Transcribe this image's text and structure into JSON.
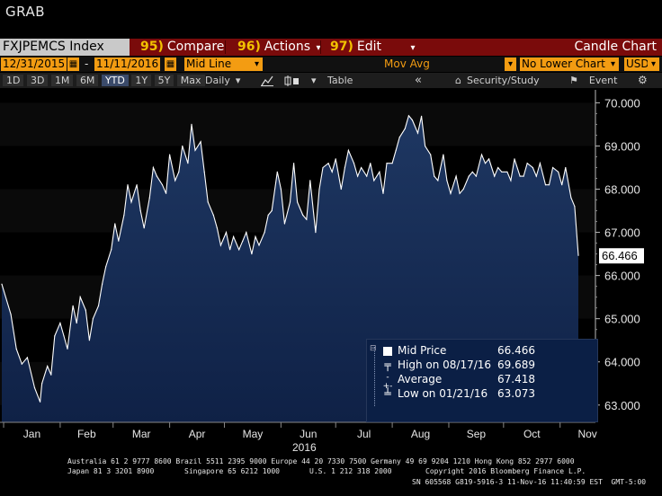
{
  "app": {
    "title": "GRAB"
  },
  "toolbar": {
    "ticker": "FXJPEMCS Index",
    "compare_num": "95)",
    "compare_label": "Compare",
    "actions_num": "96)",
    "actions_label": "Actions",
    "actions_arrow": "▾",
    "edit_num": "97)",
    "edit_label": "Edit",
    "edit_arrow": "▾",
    "chart_type": "Candle Chart"
  },
  "settings": {
    "start_date": "12/31/2015",
    "date_sep": "-",
    "end_date": "11/11/2016",
    "line_type": "Mid Line",
    "mov_avg_label": "Mov Avg",
    "lower_chart": "No Lower Chart",
    "currency": "USD"
  },
  "ranges": [
    "1D",
    "3D",
    "1M",
    "6M",
    "YTD",
    "1Y",
    "5Y",
    "Max"
  ],
  "selected_range": "YTD",
  "controls": {
    "frequency": "Daily",
    "table_label": "Table",
    "security_study_label": "Security/Study",
    "event_label": "Event"
  },
  "chart_data": {
    "type": "area",
    "series": [
      {
        "name": "Mid Price"
      }
    ],
    "year_label": "2016",
    "x_month_labels": [
      "Jan",
      "Feb",
      "Mar",
      "Apr",
      "May",
      "Jun",
      "Jul",
      "Aug",
      "Sep",
      "Oct",
      "Nov"
    ],
    "y_tick_labels": [
      "70.000",
      "69.000",
      "68.000",
      "67.000",
      "66.000",
      "65.000",
      "64.000",
      "63.000"
    ],
    "ylim": [
      62.6,
      70.3
    ],
    "last_value_label": "66.466",
    "x_dates": [
      "2015-12-31",
      "2016-01-05",
      "2016-01-08",
      "2016-01-11",
      "2016-01-14",
      "2016-01-18",
      "2016-01-21",
      "2016-01-22",
      "2016-01-25",
      "2016-01-27",
      "2016-01-29",
      "2016-02-01",
      "2016-02-03",
      "2016-02-05",
      "2016-02-08",
      "2016-02-10",
      "2016-02-12",
      "2016-02-15",
      "2016-02-17",
      "2016-02-19",
      "2016-02-22",
      "2016-02-24",
      "2016-02-26",
      "2016-02-29",
      "2016-03-02",
      "2016-03-04",
      "2016-03-07",
      "2016-03-09",
      "2016-03-11",
      "2016-03-14",
      "2016-03-16",
      "2016-03-18",
      "2016-03-21",
      "2016-03-23",
      "2016-03-25",
      "2016-03-28",
      "2016-03-30",
      "2016-04-01",
      "2016-04-04",
      "2016-04-06",
      "2016-04-08",
      "2016-04-11",
      "2016-04-13",
      "2016-04-15",
      "2016-04-18",
      "2016-04-20",
      "2016-04-22",
      "2016-04-25",
      "2016-04-27",
      "2016-04-29",
      "2016-05-02",
      "2016-05-04",
      "2016-05-06",
      "2016-05-09",
      "2016-05-11",
      "2016-05-13",
      "2016-05-16",
      "2016-05-18",
      "2016-05-20",
      "2016-05-23",
      "2016-05-25",
      "2016-05-27",
      "2016-05-30",
      "2016-06-01",
      "2016-06-03",
      "2016-06-06",
      "2016-06-08",
      "2016-06-10",
      "2016-06-13",
      "2016-06-15",
      "2016-06-17",
      "2016-06-20",
      "2016-06-22",
      "2016-06-24",
      "2016-06-27",
      "2016-06-29",
      "2016-07-01",
      "2016-07-04",
      "2016-07-06",
      "2016-07-08",
      "2016-07-11",
      "2016-07-13",
      "2016-07-15",
      "2016-07-18",
      "2016-07-20",
      "2016-07-22",
      "2016-07-25",
      "2016-07-27",
      "2016-07-29",
      "2016-08-01",
      "2016-08-03",
      "2016-08-05",
      "2016-08-08",
      "2016-08-10",
      "2016-08-12",
      "2016-08-15",
      "2016-08-17",
      "2016-08-19",
      "2016-08-22",
      "2016-08-24",
      "2016-08-26",
      "2016-08-29",
      "2016-08-31",
      "2016-09-02",
      "2016-09-05",
      "2016-09-07",
      "2016-09-09",
      "2016-09-12",
      "2016-09-14",
      "2016-09-16",
      "2016-09-19",
      "2016-09-21",
      "2016-09-23",
      "2016-09-26",
      "2016-09-28",
      "2016-09-30",
      "2016-10-03",
      "2016-10-05",
      "2016-10-07",
      "2016-10-10",
      "2016-10-12",
      "2016-10-14",
      "2016-10-17",
      "2016-10-19",
      "2016-10-21",
      "2016-10-24",
      "2016-10-26",
      "2016-10-28",
      "2016-10-31",
      "2016-11-02",
      "2016-11-04",
      "2016-11-07",
      "2016-11-09",
      "2016-11-11"
    ],
    "y": [
      65.8,
      65.1,
      64.3,
      63.95,
      64.1,
      63.4,
      63.073,
      63.5,
      63.9,
      63.7,
      64.6,
      64.9,
      64.6,
      64.3,
      65.3,
      64.9,
      65.5,
      65.2,
      64.5,
      65.0,
      65.3,
      65.8,
      66.2,
      66.6,
      67.2,
      66.8,
      67.4,
      68.1,
      67.7,
      68.1,
      67.5,
      67.1,
      67.8,
      68.5,
      68.3,
      68.1,
      67.9,
      68.8,
      68.2,
      68.4,
      69.0,
      68.6,
      69.5,
      68.9,
      69.1,
      68.4,
      67.7,
      67.4,
      67.1,
      66.7,
      67.0,
      66.6,
      66.9,
      66.6,
      66.8,
      67.0,
      66.5,
      66.9,
      66.7,
      67.0,
      67.4,
      67.5,
      68.4,
      68.0,
      67.2,
      67.7,
      68.6,
      67.7,
      67.4,
      67.3,
      68.2,
      67.0,
      68.0,
      68.5,
      68.6,
      68.4,
      68.7,
      68.0,
      68.5,
      68.9,
      68.6,
      68.3,
      68.5,
      68.3,
      68.6,
      68.2,
      68.4,
      67.9,
      68.6,
      68.6,
      68.9,
      69.2,
      69.4,
      69.7,
      69.6,
      69.3,
      69.689,
      69.0,
      68.8,
      68.3,
      68.2,
      68.8,
      68.2,
      67.9,
      68.3,
      67.9,
      68.0,
      68.3,
      68.4,
      68.3,
      68.8,
      68.6,
      68.7,
      68.3,
      68.5,
      68.4,
      68.4,
      68.2,
      68.7,
      68.3,
      68.3,
      68.6,
      68.5,
      68.3,
      68.6,
      68.1,
      68.1,
      68.5,
      68.4,
      68.1,
      68.5,
      67.8,
      67.6,
      66.466
    ],
    "legend": {
      "mid_price_label": "Mid Price",
      "mid_price_value": "66.466",
      "high_label": "High on 08/17/16",
      "high_value": "69.689",
      "average_label": "Average",
      "average_value": "67.418",
      "low_label": "Low on 01/21/16",
      "low_value": "63.073"
    },
    "colors": {
      "fill": "#1e3762",
      "fill_bottom": "#0f2146",
      "line": "#ffffff",
      "background": "#000000",
      "last_label_bg": "#ffffff"
    }
  },
  "footer": {
    "line1": "Australia 61 2 9777 8600 Brazil 5511 2395 9000 Europe 44 20 7330 7500 Germany 49 69 9204 1210 Hong Kong 852 2977 6000",
    "line2a": "Japan 81 3 3201 8900",
    "line2b": "Singapore 65 6212 1000",
    "line2c": "U.S. 1 212 318 2000",
    "line2d": "Copyright 2016 Bloomberg Finance L.P.",
    "line3": "SN 605568 G819-5916-3 11-Nov-16 11:40:59 EST  GMT-5:00"
  }
}
